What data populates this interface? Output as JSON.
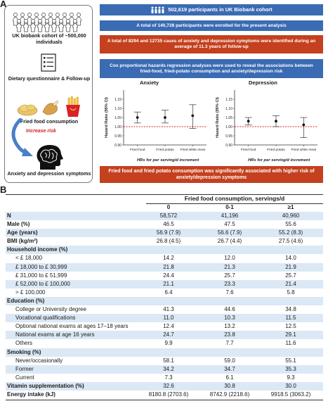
{
  "panel_labels": {
    "a": "A",
    "b": "B"
  },
  "left_flow": {
    "cohort": "UK biobank cohort of ~500,000 individuals",
    "questionnaire": "Dietary questionnaire & Follow-up",
    "food": "Fried food consumption",
    "risk": "Increase risk",
    "outcome": "Anxiety and depression symptoms"
  },
  "right_flow": {
    "participants": "502,619 participants in UK Biobank cohort",
    "enrolled": "A total of 140,728 participants were enrolled for the present analysis",
    "cases": "A total of 8294 and 12735 cases of anxiety and depression symptoms were identified during an average of 11.3 years  of follow-up",
    "cox": "Cox proportional hazards regression analyses  were used to reveal the associations between fried-food, fried-potato consumption and anxiety/depression risk",
    "conclusion": "Fried food and fried potato consumption was significantly associated with higher risk of anxiety/depression symptoms"
  },
  "colors": {
    "blue": "#3a6bb3",
    "red": "#c4401e",
    "shade": "#dbe8f5",
    "refline": "#d62020"
  },
  "chart_data": [
    {
      "type": "scatter",
      "title": "Anxiety",
      "ylabel": "Hazard Ratio (95% CI)",
      "xlabel_parts": [
        "HRs for ",
        "per",
        " serving/d increment"
      ],
      "categories": [
        "Fried food",
        "Fried potato",
        "Fried white meat"
      ],
      "estimate": [
        1.05,
        1.05,
        1.06
      ],
      "ci_low": [
        1.02,
        1.02,
        0.99
      ],
      "ci_high": [
        1.08,
        1.09,
        1.12
      ],
      "ylim": [
        0.9,
        1.2
      ],
      "yticks": [
        "0.90",
        "0.95",
        "1.00",
        "1.05",
        "1.10",
        "1.15"
      ],
      "reference": 1.0
    },
    {
      "type": "scatter",
      "title": "Depression",
      "ylabel": "Hazard Ratio (95% CI)",
      "xlabel_parts": [
        "HRs for ",
        "per",
        " serving/d increment"
      ],
      "categories": [
        "Fried food",
        "Fried potato",
        "Fried white meat"
      ],
      "estimate": [
        1.03,
        1.03,
        1.01
      ],
      "ci_low": [
        1.01,
        1.0,
        0.94
      ],
      "ci_high": [
        1.05,
        1.06,
        1.05
      ],
      "ylim": [
        0.9,
        1.2
      ],
      "yticks": [
        "0.90",
        "0.95",
        "1.00",
        "1.05",
        "1.10",
        "1.15"
      ],
      "reference": 1.0
    }
  ],
  "table": {
    "super_header": "Fried food consumption, servings/d",
    "col_headers": [
      "0",
      "0-1",
      "≥1"
    ],
    "rows": [
      {
        "label": "N",
        "bold": true,
        "values": [
          "58,572",
          "41,196",
          "40,960"
        ]
      },
      {
        "label": "Male (%)",
        "bold": true,
        "values": [
          "46.5",
          "47.5",
          "55.6"
        ]
      },
      {
        "label": "Age (years)",
        "bold": true,
        "values": [
          "56.9 (7.9)",
          "56.6 (7.9)",
          "55.2 (8.3)"
        ]
      },
      {
        "label": "BMI (kg/m²)",
        "bold": true,
        "values": [
          "26.8 (4.5)",
          "26.7 (4.4)",
          "27.5 (4.6)"
        ]
      },
      {
        "label": "Household income (%)",
        "bold": true,
        "values": [
          "",
          "",
          ""
        ]
      },
      {
        "label": "< £ 18,000",
        "indent": true,
        "values": [
          "14.2",
          "12.0",
          "14.0"
        ]
      },
      {
        "label": "£ 18,000 to £ 30,999",
        "indent": true,
        "values": [
          "21.8",
          "21.3",
          "21.9"
        ]
      },
      {
        "label": "£ 31,000 to £ 51,999",
        "indent": true,
        "values": [
          "24.4",
          "25.7",
          "25.7"
        ]
      },
      {
        "label": "£ 52,000 to £ 100,000",
        "indent": true,
        "values": [
          "21.1",
          "23.3",
          "21.4"
        ]
      },
      {
        "label": "> £ 100,000",
        "indent": true,
        "values": [
          "6.4",
          "7.6",
          "5.8"
        ]
      },
      {
        "label": "Education (%)",
        "bold": true,
        "values": [
          "",
          "",
          ""
        ]
      },
      {
        "label": "College or University degree",
        "indent": true,
        "values": [
          "41.3",
          "44.6",
          "34.8"
        ]
      },
      {
        "label": "Vocational qualifications",
        "indent": true,
        "values": [
          "11.0",
          "10.3",
          "11.5"
        ]
      },
      {
        "label": "Optional national exams at ages 17–18 years",
        "indent": true,
        "values": [
          "12.4",
          "13.2",
          "12.5"
        ]
      },
      {
        "label": "National exams at age 16 years",
        "indent": true,
        "values": [
          "24.7",
          "23.8",
          "29.1"
        ]
      },
      {
        "label": "Others",
        "indent": true,
        "values": [
          "9.9",
          "7.7",
          "11.6"
        ]
      },
      {
        "label": "Smoking (%)",
        "bold": true,
        "values": [
          "",
          "",
          ""
        ]
      },
      {
        "label": "Never/occasionally",
        "indent": true,
        "values": [
          "58.1",
          "59.0",
          "55.1"
        ]
      },
      {
        "label": "Former",
        "indent": true,
        "values": [
          "34.2",
          "34.7",
          "35.3"
        ]
      },
      {
        "label": "Current",
        "indent": true,
        "values": [
          "7.3",
          "6.1",
          "9.3"
        ]
      },
      {
        "label": "Vitamin supplementation (%)",
        "bold": true,
        "values": [
          "32.6",
          "30.8",
          "30.0"
        ]
      },
      {
        "label": "Energy intake (kJ)",
        "bold": true,
        "values": [
          "8180.8 (2703.6)",
          "8742.9 (2218.6)",
          "9918.5 (3063.2)"
        ]
      }
    ]
  }
}
